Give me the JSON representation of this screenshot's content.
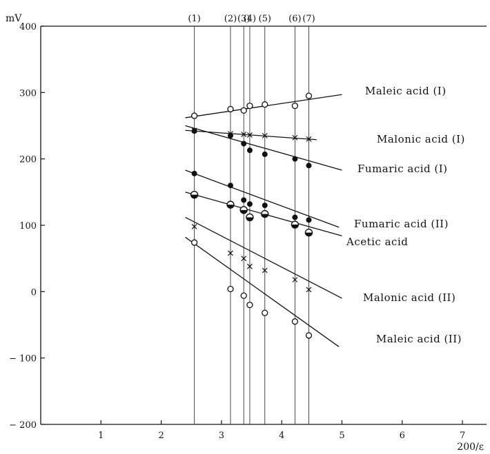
{
  "chart_data": {
    "type": "scatter",
    "xlabel": "200/ε",
    "ylabel": "mV",
    "xlim": [
      0,
      7.4
    ],
    "ylim": [
      -200,
      400
    ],
    "xticks": [
      1,
      2,
      3,
      4,
      5,
      6,
      7
    ],
    "yticks": [
      400,
      300,
      200,
      100,
      0,
      -100,
      -200
    ],
    "ytick_labels": [
      "400",
      "300",
      "200",
      "100",
      "0",
      "− 100",
      "− 200"
    ],
    "grid": false,
    "solvent_columns": [
      {
        "label": "(1)",
        "x": 2.55
      },
      {
        "label": "(2)",
        "x": 3.15
      },
      {
        "label": "(3)",
        "x": 3.37
      },
      {
        "label": "(4)",
        "x": 3.47
      },
      {
        "label": "(5)",
        "x": 3.72
      },
      {
        "label": "(6)",
        "x": 4.22
      },
      {
        "label": "(7)",
        "x": 4.45
      }
    ],
    "series": [
      {
        "name": "Maleic acid (I)",
        "marker": "open-circle",
        "x": [
          2.55,
          3.15,
          3.37,
          3.47,
          3.72,
          4.22,
          4.45
        ],
        "y": [
          265,
          275,
          273,
          280,
          282,
          280,
          295
        ],
        "fit": {
          "x": [
            2.4,
            5.0
          ],
          "y": [
            262,
            297
          ]
        }
      },
      {
        "name": "Malonic acid (I)",
        "marker": "cross",
        "x": [
          2.55,
          3.15,
          3.37,
          3.47,
          3.72,
          4.22,
          4.45
        ],
        "y": [
          243,
          238,
          237,
          236,
          235,
          232,
          230
        ],
        "fit": {
          "x": [
            2.4,
            4.58
          ],
          "y": [
            243,
            229
          ]
        }
      },
      {
        "name": "Fumaric acid (I)",
        "marker": "filled-circle",
        "x": [
          2.55,
          3.15,
          3.37,
          3.47,
          3.72,
          4.22,
          4.45
        ],
        "y": [
          242,
          235,
          223,
          213,
          207,
          200,
          190
        ],
        "fit": {
          "x": [
            2.4,
            5.0
          ],
          "y": [
            250,
            183
          ]
        }
      },
      {
        "name": "Fumaric acid (II)",
        "marker": "filled-circle",
        "x": [
          2.55,
          3.15,
          3.37,
          3.47,
          3.72,
          4.22,
          4.45
        ],
        "y": [
          178,
          160,
          138,
          132,
          130,
          112,
          108
        ],
        "fit": {
          "x": [
            2.4,
            4.95
          ],
          "y": [
            183,
            97
          ]
        }
      },
      {
        "name": "Acetic acid",
        "marker": "half-filled-circle",
        "x": [
          2.55,
          3.15,
          3.37,
          3.47,
          3.72,
          4.22,
          4.45
        ],
        "y": [
          146,
          131,
          123,
          112,
          117,
          101,
          89
        ],
        "fit": {
          "x": [
            2.4,
            5.0
          ],
          "y": [
            150,
            84
          ]
        }
      },
      {
        "name": "Malonic acid (II)",
        "marker": "cross",
        "x": [
          2.55,
          3.15,
          3.37,
          3.47,
          3.72,
          4.22,
          4.45
        ],
        "y": [
          98,
          58,
          50,
          38,
          32,
          18,
          3
        ],
        "fit": {
          "x": [
            2.4,
            5.0
          ],
          "y": [
            112,
            -10
          ]
        }
      },
      {
        "name": "Maleic acid (II)",
        "marker": "open-circle",
        "x": [
          2.55,
          3.15,
          3.37,
          3.47,
          3.72,
          4.22,
          4.45
        ],
        "y": [
          74,
          4,
          -6,
          -20,
          -32,
          -45,
          -66
        ],
        "fit": {
          "x": [
            2.4,
            4.95
          ],
          "y": [
            82,
            -83
          ]
        }
      }
    ]
  }
}
